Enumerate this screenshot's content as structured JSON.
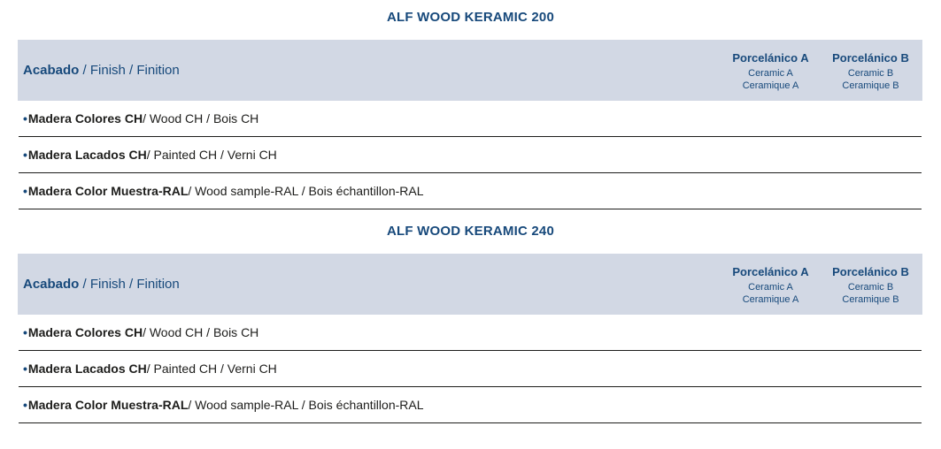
{
  "ui": {
    "bullet": "•"
  },
  "colors": {
    "navy": "#17497B",
    "header_bg": "#D2D8E4",
    "ink": "#1D1D1B",
    "line": "#1D1D1B"
  },
  "tables": [
    {
      "title": "ALF WOOD KERAMIC 200",
      "header": {
        "label_primary": "Acabado",
        "label_secondary": "/ Finish / Finition",
        "columns": [
          {
            "title": "Porcelánico A",
            "sub1": "Ceramic A",
            "sub2": "Ceramique A"
          },
          {
            "title": "Porcelánico B",
            "sub1": "Ceramic B",
            "sub2": "Ceramique B"
          }
        ]
      },
      "rows": [
        {
          "primary": "Madera Colores CH",
          "secondary": "/ Wood CH / Bois CH"
        },
        {
          "primary": "Madera Lacados CH",
          "secondary": "/ Painted CH / Verni CH"
        },
        {
          "primary": "Madera Color Muestra-RAL",
          "secondary": "/ Wood sample-RAL / Bois échantillon-RAL"
        }
      ]
    },
    {
      "title": "ALF WOOD KERAMIC 240",
      "header": {
        "label_primary": "Acabado",
        "label_secondary": "/ Finish / Finition",
        "columns": [
          {
            "title": "Porcelánico A",
            "sub1": "Ceramic A",
            "sub2": "Ceramique A"
          },
          {
            "title": "Porcelánico B",
            "sub1": "Ceramic B",
            "sub2": "Ceramique B"
          }
        ]
      },
      "rows": [
        {
          "primary": "Madera Colores CH",
          "secondary": "/ Wood CH / Bois CH"
        },
        {
          "primary": "Madera Lacados CH",
          "secondary": "/ Painted CH / Verni CH"
        },
        {
          "primary": "Madera Color Muestra-RAL",
          "secondary": "/ Wood sample-RAL / Bois échantillon-RAL"
        }
      ]
    }
  ]
}
